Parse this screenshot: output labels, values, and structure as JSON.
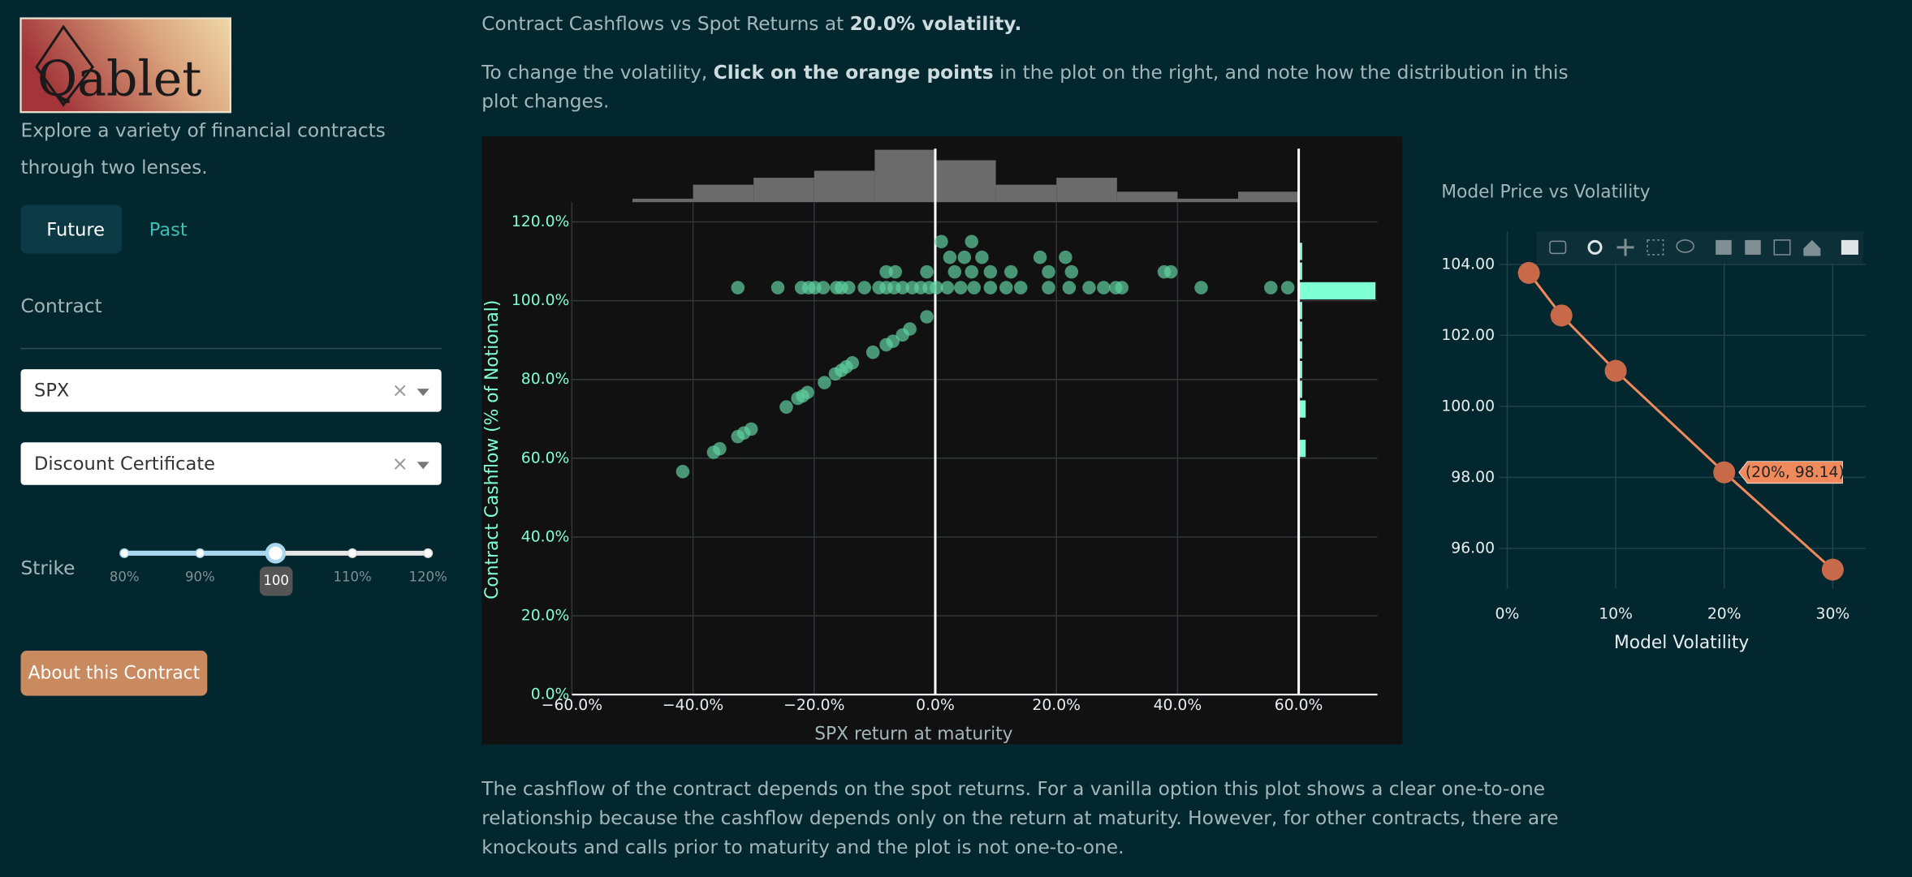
{
  "sidebar": {
    "logo": "Qablet",
    "tagline_lines": [
      "Explore a variety of financial contracts",
      "through two lenses."
    ],
    "tabs": [
      "Future",
      "Past"
    ],
    "section_title": "Contract",
    "dropdowns": [
      "SPX",
      "Discount Certificate"
    ],
    "slider_label": "Strike",
    "slider_marks": [
      "80%",
      "90%",
      "110%",
      "120%"
    ],
    "slider_value": "100",
    "button": "About this Contract"
  },
  "heading": {
    "prefix": "Contract Cashflows vs Spot Returns at ",
    "bold": "20.0% volatility."
  },
  "instruction": {
    "prefix": "To change the volatility, ",
    "bold": "Click on the orange points",
    "suffix": " in the plot on the right, and note how the distribution in this",
    "line2": "plot changes."
  },
  "footer_lines": [
    "The cashflow of the contract depends on the spot returns. For a vanilla option this plot shows a clear one-to-one",
    "relationship because the cashflow depends only on the return at maturity. However, for other contracts, there are",
    "knockouts and calls prior to maturity and the plot is not one-to-one."
  ],
  "chart_data": [
    {
      "type": "scatter",
      "xlabel": "SPX return at maturity",
      "ylabel": "Contract Cashflow (% of Notional)",
      "x": [
        -41.7,
        -36.6,
        -35.6,
        -32.6,
        -31.6,
        -30.4,
        -24.6,
        -22.7,
        -21.9,
        -21.1,
        -18.3,
        -16.5,
        -15.5,
        -14.7,
        -13.7,
        -10.3,
        -8.1,
        -7.0,
        -5.4,
        -4.2,
        -1.4,
        -32.6,
        -26.0,
        -22.1,
        -20.9,
        -19.9,
        -18.5,
        -16.3,
        -15.5,
        -14.3,
        -11.7,
        -9.3,
        -8.1,
        -6.8,
        -5.4,
        -3.8,
        -2.4,
        -1.0,
        0.2,
        2.0,
        4.2,
        6.4,
        9.1,
        11.7,
        14.1,
        18.7,
        22.1,
        25.4,
        27.8,
        29.8,
        30.8,
        43.9,
        55.4,
        58.2,
        -8.1,
        -6.6,
        -1.4,
        3.2,
        6.0,
        9.1,
        12.5,
        18.7,
        22.5,
        37.8,
        38.9,
        2.4,
        4.8,
        7.7,
        17.3,
        21.5,
        1.0,
        6.0
      ],
      "values": [
        56.6,
        61.5,
        62.4,
        65.5,
        66.4,
        67.4,
        73.0,
        75.2,
        75.8,
        76.7,
        79.2,
        81.4,
        82.3,
        83.2,
        84.2,
        86.9,
        88.8,
        89.7,
        91.3,
        92.8,
        95.9,
        103.3,
        103.3,
        103.3,
        103.3,
        103.3,
        103.3,
        103.3,
        103.3,
        103.3,
        103.3,
        103.3,
        103.3,
        103.3,
        103.3,
        103.3,
        103.3,
        103.3,
        103.3,
        103.3,
        103.3,
        103.3,
        103.3,
        103.3,
        103.3,
        103.3,
        103.3,
        103.3,
        103.3,
        103.3,
        103.3,
        103.3,
        103.3,
        103.3,
        107.3,
        107.3,
        107.3,
        107.3,
        107.3,
        107.3,
        107.3,
        107.3,
        107.3,
        107.3,
        107.3,
        111.0,
        111.0,
        111.0,
        111.0,
        111.0,
        115.0,
        115.0
      ],
      "color": "#5fcf9f",
      "xlim": [
        -60,
        73
      ],
      "ylim": [
        0,
        125
      ],
      "xticks": [
        {
          "value": -60,
          "label": "−60.0%"
        },
        {
          "value": -40,
          "label": "−40.0%"
        },
        {
          "value": -20,
          "label": "−20.0%"
        },
        {
          "value": 0,
          "label": "0.0%"
        },
        {
          "value": 20,
          "label": "20.0%"
        },
        {
          "value": 40,
          "label": "40.0%"
        },
        {
          "value": 60,
          "label": "60.0%"
        }
      ],
      "yticks": [
        {
          "value": 0,
          "label": "0.0%"
        },
        {
          "value": 20,
          "label": "20.0%"
        },
        {
          "value": 40,
          "label": "40.0%"
        },
        {
          "value": 60,
          "label": "60.0%"
        },
        {
          "value": 80,
          "label": "80.0%"
        },
        {
          "value": 100,
          "label": "100.0%"
        },
        {
          "value": 120,
          "label": "120.0%"
        }
      ],
      "grid": true,
      "reference_lines": [
        0,
        60
      ],
      "x_histogram": {
        "bins": [
          -50,
          -40,
          -30,
          -20,
          -10,
          0,
          10,
          20,
          30,
          40,
          50,
          60
        ],
        "counts": [
          1,
          5,
          7,
          9,
          15,
          12,
          5,
          7,
          3,
          1,
          3
        ],
        "color": "#6b6b6b"
      },
      "y_histogram": {
        "bins": [
          60,
          65,
          70,
          75,
          80,
          85,
          90,
          95,
          100,
          105,
          110,
          115
        ],
        "counts": [
          2,
          0,
          2,
          1,
          1,
          1,
          1,
          1,
          22,
          1,
          1
        ],
        "color": "#7fffd4"
      }
    },
    {
      "type": "line",
      "title": "Model Price vs Volatility",
      "xlabel": "Model Volatility",
      "x": [
        2,
        5,
        10,
        20,
        30
      ],
      "values": [
        103.76,
        102.56,
        101.0,
        98.14,
        95.4
      ],
      "color": "#f08a5d",
      "marker_color": "#c8694a",
      "xlim": [
        -0.7,
        33
      ],
      "ylim": [
        94.87,
        104.93
      ],
      "xticks": [
        {
          "value": 0,
          "label": "0%"
        },
        {
          "value": 10,
          "label": "10%"
        },
        {
          "value": 20,
          "label": "20%"
        },
        {
          "value": 30,
          "label": "30%"
        }
      ],
      "yticks": [
        {
          "value": 96,
          "label": "96.00"
        },
        {
          "value": 98,
          "label": "98.00"
        },
        {
          "value": 100,
          "label": "100.00"
        },
        {
          "value": 102,
          "label": "102.00"
        },
        {
          "value": 104,
          "label": "104.00"
        }
      ],
      "grid": true,
      "hover_label": "(20%, 98.14)",
      "hover_index": 3
    }
  ]
}
